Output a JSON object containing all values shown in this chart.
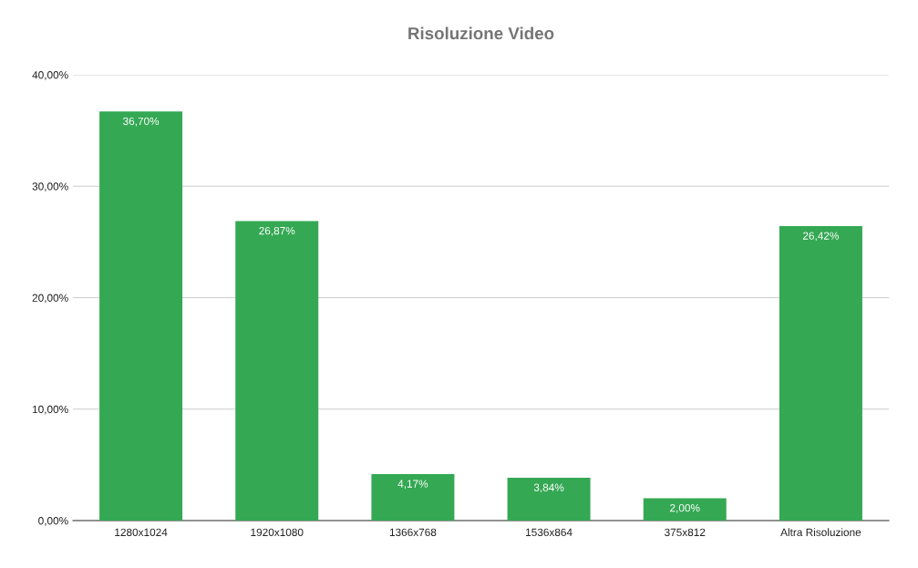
{
  "chart_data": {
    "type": "bar",
    "title": "Risoluzione Video",
    "categories": [
      "1280x1024",
      "1920x1080",
      "1366x768",
      "1536x864",
      "375x812",
      "Altra Risoluzione"
    ],
    "values": [
      36.7,
      26.87,
      4.17,
      3.84,
      2.0,
      26.42
    ],
    "value_labels": [
      "36,70%",
      "26,87%",
      "4,17%",
      "3,84%",
      "2,00%",
      "26,42%"
    ],
    "color": "#34a853",
    "ylim": [
      0,
      40
    ],
    "yticks": [
      {
        "value": 0,
        "label": "0,00%"
      },
      {
        "value": 10,
        "label": "10,00%"
      },
      {
        "value": 20,
        "label": "20,00%"
      },
      {
        "value": 30,
        "label": "30,00%"
      },
      {
        "value": 40,
        "label": "40,00%"
      }
    ],
    "grid": "y"
  }
}
